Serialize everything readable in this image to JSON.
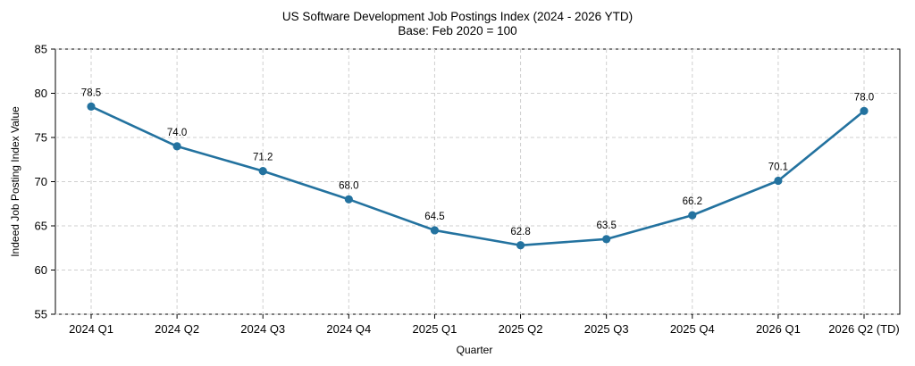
{
  "chart_data": {
    "type": "line",
    "title": "US Software Development Job Postings Index (2024 - 2026 YTD)",
    "subtitle": "Base: Feb 2020 = 100",
    "xlabel": "Quarter",
    "ylabel": "Indeed Job Posting Index Value",
    "categories": [
      "2024 Q1",
      "2024 Q2",
      "2024 Q3",
      "2024 Q4",
      "2025 Q1",
      "2025 Q2",
      "2025 Q3",
      "2025 Q4",
      "2026 Q1",
      "2026 Q2 (TD)"
    ],
    "series": [
      {
        "values": [
          78.5,
          74.0,
          71.2,
          68.0,
          64.5,
          62.8,
          63.5,
          66.2,
          70.1,
          78.0
        ],
        "labels": [
          "78.5",
          "74.0",
          "71.2",
          "68.0",
          "64.5",
          "62.8",
          "63.5",
          "66.2",
          "70.1",
          "78.0"
        ]
      }
    ],
    "ylim": [
      55,
      85
    ],
    "yticks": [
      "55",
      "60",
      "65",
      "70",
      "75",
      "80",
      "85"
    ],
    "grid": true,
    "line_color": "#23729f"
  }
}
